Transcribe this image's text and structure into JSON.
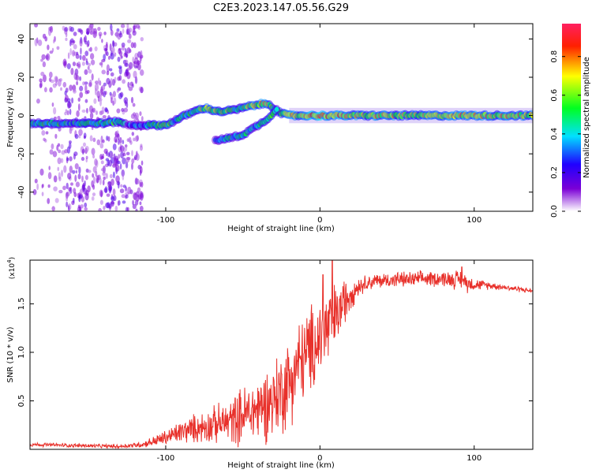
{
  "figure": {
    "title": "C2E3.2023.147.05.56.G29"
  },
  "colors": {
    "snr_line": "#e8302a",
    "background_spectral": "#c9b5f5",
    "colormap": [
      "#ffffff",
      "#7b00d6",
      "#2000ff",
      "#00e0ff",
      "#00ff20",
      "#ffff00",
      "#ff2000",
      "#ff2060"
    ]
  },
  "chart_data": [
    {
      "type": "heatmap",
      "xlabel": "Height of straight line (km)",
      "ylabel": "Frequency (Hz)",
      "xlim": [
        -188,
        138
      ],
      "ylim": [
        -50,
        48
      ],
      "xticks": [
        -100,
        0,
        100
      ],
      "yticks": [
        -40,
        -20,
        0,
        20,
        40
      ],
      "colorbar": {
        "label": "Normalized spectral amplitude",
        "range": [
          0,
          0.97
        ],
        "ticks": [
          0.0,
          0.2,
          0.4,
          0.6,
          0.8
        ]
      },
      "tracks": [
        {
          "x": [
            -188,
            -175,
            -160,
            -140,
            -130,
            -125,
            -118,
            -100,
            -95,
            -85,
            -75,
            -65,
            -55,
            -45,
            -38,
            -33,
            -30,
            -25,
            -20,
            -10,
            0,
            20,
            60,
            100,
            138
          ],
          "y": [
            -4,
            -4,
            -4,
            -4,
            -3,
            -5,
            -5,
            -5,
            -3,
            1,
            4,
            2,
            3,
            5,
            6,
            6,
            4,
            1,
            0,
            0,
            0,
            0,
            0,
            0,
            0
          ],
          "amplitude": [
            0.4,
            0.5,
            0.4,
            0.5,
            0.5,
            0.3,
            0.3,
            0.6,
            0.4,
            0.5,
            0.6,
            0.6,
            0.5,
            0.6,
            0.7,
            0.6,
            0.5,
            0.6,
            0.7,
            0.7,
            0.8,
            0.7,
            0.65,
            0.7,
            0.65
          ]
        },
        {
          "x": [
            -68,
            -60,
            -50,
            -42,
            -36,
            -32,
            -28
          ],
          "y": [
            -13,
            -12,
            -10,
            -6,
            -3,
            0,
            3
          ],
          "amplitude": [
            0.4,
            0.45,
            0.45,
            0.4,
            0.5,
            0.5,
            0.5
          ]
        }
      ]
    },
    {
      "type": "line",
      "xlabel": "Height of straight line (km)",
      "ylabel": "SNR (10 * v/v)",
      "y_multiplier": "(x10",
      "y_multiplier_exp": "4",
      "xlim": [
        -188,
        138
      ],
      "ylim": [
        0,
        1.95
      ],
      "xticks": [
        -100,
        0,
        100
      ],
      "yticks": [
        0.5,
        1.0,
        1.5
      ],
      "ytick_labels": [
        "0.5",
        "1.0",
        "1.5"
      ],
      "series": [
        {
          "x": [
            -188,
            -160,
            -130,
            -115,
            -100,
            -90,
            -80,
            -70,
            -60,
            -50,
            -40,
            -30,
            -25,
            -20,
            -15,
            -10,
            -5,
            0,
            5,
            10,
            15,
            20,
            25,
            30,
            40,
            50,
            60,
            70,
            80,
            90,
            95,
            100,
            110,
            120,
            130,
            138
          ],
          "y": [
            0.05,
            0.04,
            0.03,
            0.05,
            0.12,
            0.18,
            0.22,
            0.25,
            0.28,
            0.35,
            0.42,
            0.52,
            0.6,
            0.7,
            0.85,
            0.95,
            1.05,
            1.15,
            1.25,
            1.35,
            1.5,
            1.62,
            1.68,
            1.72,
            1.74,
            1.75,
            1.75,
            1.76,
            1.76,
            1.75,
            1.72,
            1.7,
            1.69,
            1.67,
            1.65,
            1.63
          ],
          "noise": [
            0.02,
            0.02,
            0.02,
            0.03,
            0.08,
            0.12,
            0.15,
            0.18,
            0.22,
            0.3,
            0.35,
            0.4,
            0.45,
            0.45,
            0.45,
            0.45,
            0.45,
            0.45,
            0.45,
            0.35,
            0.25,
            0.18,
            0.1,
            0.08,
            0.08,
            0.08,
            0.08,
            0.08,
            0.08,
            0.1,
            0.1,
            0.06,
            0.04,
            0.03,
            0.03,
            0.02
          ]
        }
      ],
      "peaks": [
        {
          "x": 8,
          "y": 1.95
        },
        {
          "x": 2,
          "y": 1.8
        },
        {
          "x": 92,
          "y": 1.88
        }
      ]
    }
  ]
}
